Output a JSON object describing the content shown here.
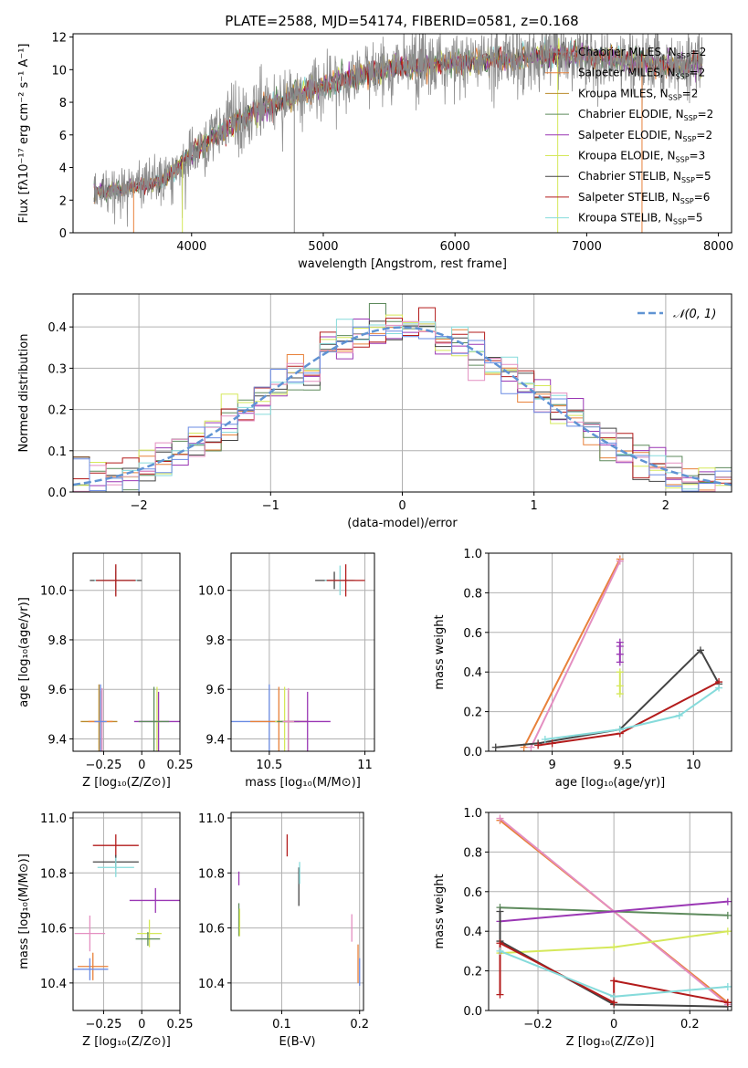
{
  "figure_title": "PLATE=2588, MJD=54174, FIBERID=0581, z=0.168",
  "colors": {
    "series": [
      "#8c8c8c",
      "#e8813a",
      "#b98a2a",
      "#5d8a5c",
      "#9a37b4",
      "#d5e85a",
      "#444444",
      "#b31b1b",
      "#86dbdb"
    ],
    "pink": "#e48fc1",
    "blue": "#6a8be3",
    "gauss": "#5f93d3",
    "grid": "#b0b0b0"
  },
  "chart_data": [
    {
      "type": "line",
      "title": "PLATE=2588, MJD=54174, FIBERID=0581, z=0.168",
      "xlabel": "wavelength [Angstrom, rest frame]",
      "ylabel": "Flux [fλ10⁻¹⁷ erg cm⁻² s⁻¹ A⁻¹]",
      "xlim": [
        3100,
        8100
      ],
      "ylim": [
        0,
        12.2
      ],
      "xticks": [
        4000,
        5000,
        6000,
        7000,
        8000
      ],
      "yticks": [
        0,
        2,
        4,
        6,
        8,
        10,
        12
      ],
      "grid": false,
      "legend_position": "top-right",
      "continuum": {
        "x": [
          3280,
          3500,
          3650,
          3800,
          3950,
          4100,
          4300,
          4500,
          4800,
          5000,
          5200,
          5500,
          5800,
          6100,
          6500,
          6800,
          7100,
          7400,
          7700,
          7850
        ],
        "y": [
          2.5,
          2.7,
          2.9,
          3.3,
          4.5,
          5.5,
          6.6,
          7.5,
          8.5,
          9.0,
          9.5,
          10.1,
          10.3,
          10.5,
          10.7,
          10.9,
          10.8,
          10.5,
          10.2,
          10.4
        ]
      },
      "series": [
        {
          "name": "Chabrier MILES, N_SSP=2"
        },
        {
          "name": "Salpeter MILES, N_SSP=2"
        },
        {
          "name": "Kroupa MILES, N_SSP=2"
        },
        {
          "name": "Chabrier ELODIE, N_SSP=2"
        },
        {
          "name": "Salpeter ELODIE, N_SSP=2"
        },
        {
          "name": "Kroupa ELODIE, N_SSP=3"
        },
        {
          "name": "Chabrier STELIB, N_SSP=5"
        },
        {
          "name": "Salpeter STELIB, N_SSP=6"
        },
        {
          "name": "Kroupa STELIB, N_SSP=5"
        }
      ]
    },
    {
      "type": "step",
      "xlabel": "(data-model)/error",
      "ylabel": "Normed distribution",
      "xlim": [
        -2.5,
        2.5
      ],
      "ylim": [
        0,
        0.48
      ],
      "xticks": [
        -2,
        -1,
        0,
        1,
        2
      ],
      "yticks": [
        0.0,
        0.1,
        0.2,
        0.3,
        0.4
      ],
      "grid": true,
      "legend": [
        "𝒩(0, 1)"
      ],
      "legend_position": "top-right",
      "bin_width": 0.125,
      "reference": "standard normal pdf (dashed)"
    },
    {
      "type": "errorbar",
      "xlabel": "Z [log₁₀(Z/Z⊙)]",
      "ylabel": "age  [log₁₀(age/yr)]",
      "xlim": [
        -0.45,
        0.25
      ],
      "ylim": [
        9.35,
        10.15
      ],
      "xticks": [
        -0.25,
        0.0,
        0.25
      ],
      "yticks": [
        9.4,
        9.6,
        9.8,
        10.0
      ],
      "grid": true,
      "points": [
        {
          "x": -0.28,
          "y": 9.47,
          "xerr": 0.12,
          "yerr": 0.3,
          "c": 2
        },
        {
          "x": -0.27,
          "y": 9.47,
          "xerr": 0.08,
          "yerr": 0.25,
          "c": 1
        },
        {
          "x": -0.26,
          "y": 9.47,
          "xerr": 0.03,
          "yerr": 0.27,
          "c": "pink"
        },
        {
          "x": -0.27,
          "y": 9.47,
          "xerr": 0.04,
          "yerr": 0.3,
          "c": "blue"
        },
        {
          "x": 0.11,
          "y": 9.47,
          "xerr": 0.16,
          "yerr": 0.24,
          "c": 4
        },
        {
          "x": 0.1,
          "y": 9.47,
          "xerr": 0.03,
          "yerr": 0.28,
          "c": 5
        },
        {
          "x": 0.08,
          "y": 9.47,
          "xerr": 0.1,
          "yerr": 0.28,
          "c": 3
        },
        {
          "x": -0.17,
          "y": 10.04,
          "xerr": 0.17,
          "yerr": 0.07,
          "c": 6
        },
        {
          "x": -0.17,
          "y": 10.04,
          "xerr": 0.14,
          "yerr": 0.12,
          "c": 8
        },
        {
          "x": -0.17,
          "y": 10.04,
          "xerr": 0.13,
          "yerr": 0.13,
          "c": 7
        }
      ]
    },
    {
      "type": "errorbar",
      "xlabel": "mass [log₁₀(M/M⊙)]",
      "xlim": [
        10.3,
        11.05
      ],
      "ylim": [
        9.35,
        10.15
      ],
      "xticks": [
        10.5,
        11.0
      ],
      "yticks": [
        9.4,
        9.6,
        9.8,
        10.0
      ],
      "grid": true,
      "points": [
        {
          "x": 10.5,
          "y": 9.47,
          "xerr": 0.2,
          "yerr": 0.3,
          "c": "blue"
        },
        {
          "x": 10.55,
          "y": 9.47,
          "xerr": 0.15,
          "yerr": 0.28,
          "c": 1
        },
        {
          "x": 10.58,
          "y": 9.47,
          "xerr": 0.05,
          "yerr": 0.28,
          "c": 5
        },
        {
          "x": 10.6,
          "y": 9.47,
          "xerr": 0.06,
          "yerr": 0.25,
          "c": 3
        },
        {
          "x": 10.7,
          "y": 9.47,
          "xerr": 0.12,
          "yerr": 0.24,
          "c": 4
        },
        {
          "x": 10.6,
          "y": 9.47,
          "xerr": 0.03,
          "yerr": 0.27,
          "c": "pink"
        },
        {
          "x": 10.84,
          "y": 10.04,
          "xerr": 0.1,
          "yerr": 0.07,
          "c": 6
        },
        {
          "x": 10.87,
          "y": 10.04,
          "xerr": 0.08,
          "yerr": 0.12,
          "c": 8
        },
        {
          "x": 10.9,
          "y": 10.04,
          "xerr": 0.1,
          "yerr": 0.13,
          "c": 7
        }
      ]
    },
    {
      "type": "line",
      "xlabel": "age  [log₁₀(age/yr)]",
      "ylabel": "mass weight",
      "xlim": [
        8.55,
        10.27
      ],
      "ylim": [
        0,
        1.0
      ],
      "xticks": [
        9.0,
        9.5,
        10.0
      ],
      "yticks": [
        0.0,
        0.2,
        0.4,
        0.6,
        0.8,
        1.0
      ],
      "grid": true,
      "series": [
        {
          "c": 1,
          "x": [
            8.8,
            9.48
          ],
          "y": [
            0.02,
            0.97
          ]
        },
        {
          "c": "pink",
          "x": [
            8.85,
            9.48
          ],
          "y": [
            0.02,
            0.96
          ]
        },
        {
          "c": 4,
          "x": [
            9.48,
            9.48,
            9.48,
            9.48
          ],
          "y": [
            0.45,
            0.49,
            0.53,
            0.55
          ]
        },
        {
          "c": 5,
          "x": [
            9.48,
            9.48,
            9.48
          ],
          "y": [
            0.29,
            0.33,
            0.4
          ]
        },
        {
          "c": 6,
          "x": [
            8.6,
            8.9,
            9.48,
            10.05,
            10.18
          ],
          "y": [
            0.02,
            0.04,
            0.11,
            0.51,
            0.34
          ]
        },
        {
          "c": 7,
          "x": [
            8.9,
            9.0,
            9.48,
            10.18
          ],
          "y": [
            0.03,
            0.04,
            0.09,
            0.35
          ]
        },
        {
          "c": 8,
          "x": [
            8.95,
            9.48,
            9.9,
            10.18
          ],
          "y": [
            0.06,
            0.11,
            0.18,
            0.32
          ]
        }
      ]
    },
    {
      "type": "errorbar",
      "xlabel": "Z [log₁₀(Z/Z⊙)]",
      "ylabel": "mass [log₁₀(M/M⊙)]",
      "xlim": [
        -0.45,
        0.25
      ],
      "ylim": [
        10.3,
        11.02
      ],
      "xticks": [
        -0.25,
        0.0,
        0.25
      ],
      "yticks": [
        10.4,
        10.6,
        10.8,
        11.0
      ],
      "grid": true,
      "points": [
        {
          "x": -0.32,
          "y": 10.46,
          "xerr": 0.1,
          "yerr": 0.1,
          "c": 1
        },
        {
          "x": -0.34,
          "y": 10.45,
          "xerr": 0.12,
          "yerr": 0.08,
          "c": "blue"
        },
        {
          "x": -0.34,
          "y": 10.58,
          "xerr": 0.1,
          "yerr": 0.13,
          "c": "pink"
        },
        {
          "x": -0.17,
          "y": 10.9,
          "xerr": 0.15,
          "yerr": 0.08,
          "c": 7
        },
        {
          "x": -0.17,
          "y": 10.84,
          "xerr": 0.15,
          "yerr": 0.05,
          "c": 6
        },
        {
          "x": -0.17,
          "y": 10.82,
          "xerr": 0.12,
          "yerr": 0.07,
          "c": 8
        },
        {
          "x": 0.09,
          "y": 10.7,
          "xerr": 0.17,
          "yerr": 0.09,
          "c": 4
        },
        {
          "x": 0.05,
          "y": 10.58,
          "xerr": 0.08,
          "yerr": 0.1,
          "c": 5
        },
        {
          "x": 0.04,
          "y": 10.56,
          "xerr": 0.08,
          "yerr": 0.05,
          "c": 3
        }
      ]
    },
    {
      "type": "errorbar",
      "xlabel": "E(B-V)",
      "xlim": [
        0.035,
        0.205
      ],
      "ylim": [
        10.3,
        11.02
      ],
      "xticks": [
        0.1,
        0.2
      ],
      "yticks": [
        10.4,
        10.6,
        10.8,
        11.0
      ],
      "grid": true,
      "points": [
        {
          "x": 0.045,
          "y": 10.78,
          "xerr": 0,
          "yerr": 0.05,
          "c": 4
        },
        {
          "x": 0.045,
          "y": 10.63,
          "xerr": 0,
          "yerr": 0.12,
          "c": 3
        },
        {
          "x": 0.046,
          "y": 10.62,
          "xerr": 0,
          "yerr": 0.1,
          "c": 5
        },
        {
          "x": 0.107,
          "y": 10.9,
          "xerr": 0,
          "yerr": 0.08,
          "c": 7
        },
        {
          "x": 0.122,
          "y": 10.75,
          "xerr": 0,
          "yerr": 0.14,
          "c": 6
        },
        {
          "x": 0.123,
          "y": 10.8,
          "xerr": 0,
          "yerr": 0.08,
          "c": 8
        },
        {
          "x": 0.19,
          "y": 10.6,
          "xerr": 0,
          "yerr": 0.1,
          "c": "pink"
        },
        {
          "x": 0.198,
          "y": 10.47,
          "xerr": 0,
          "yerr": 0.14,
          "c": 1
        },
        {
          "x": 0.2,
          "y": 10.44,
          "xerr": 0,
          "yerr": 0.1,
          "c": "blue"
        }
      ]
    },
    {
      "type": "line",
      "xlabel": "Z [log₁₀(Z/Z⊙)]",
      "ylabel": "mass weight",
      "xlim": [
        -0.33,
        0.31
      ],
      "ylim": [
        0,
        1.0
      ],
      "xticks": [
        -0.2,
        0.0,
        0.2
      ],
      "yticks": [
        0.0,
        0.2,
        0.4,
        0.6,
        0.8,
        1.0
      ],
      "grid": true,
      "series": [
        {
          "c": 1,
          "x": [
            -0.3,
            0.3
          ],
          "y": [
            0.96,
            0.04
          ]
        },
        {
          "c": "pink",
          "x": [
            -0.3,
            0.3
          ],
          "y": [
            0.97,
            0.03
          ]
        },
        {
          "c": 3,
          "x": [
            -0.3,
            0.3
          ],
          "y": [
            0.52,
            0.48
          ]
        },
        {
          "c": 4,
          "x": [
            -0.3,
            0.3
          ],
          "y": [
            0.45,
            0.55
          ]
        },
        {
          "c": 5,
          "x": [
            -0.3,
            0.0,
            0.3
          ],
          "y": [
            0.29,
            0.32,
            0.4
          ]
        },
        {
          "c": 6,
          "x": [
            -0.3,
            -0.3,
            0.0,
            0.3
          ],
          "y": [
            0.5,
            0.35,
            0.03,
            0.02
          ]
        },
        {
          "c": 7,
          "x": [
            -0.3,
            -0.3,
            0.0,
            0.0,
            0.3
          ],
          "y": [
            0.08,
            0.34,
            0.04,
            0.15,
            0.04
          ]
        },
        {
          "c": 8,
          "x": [
            -0.3,
            0.0,
            0.3
          ],
          "y": [
            0.3,
            0.07,
            0.12
          ]
        }
      ]
    }
  ]
}
